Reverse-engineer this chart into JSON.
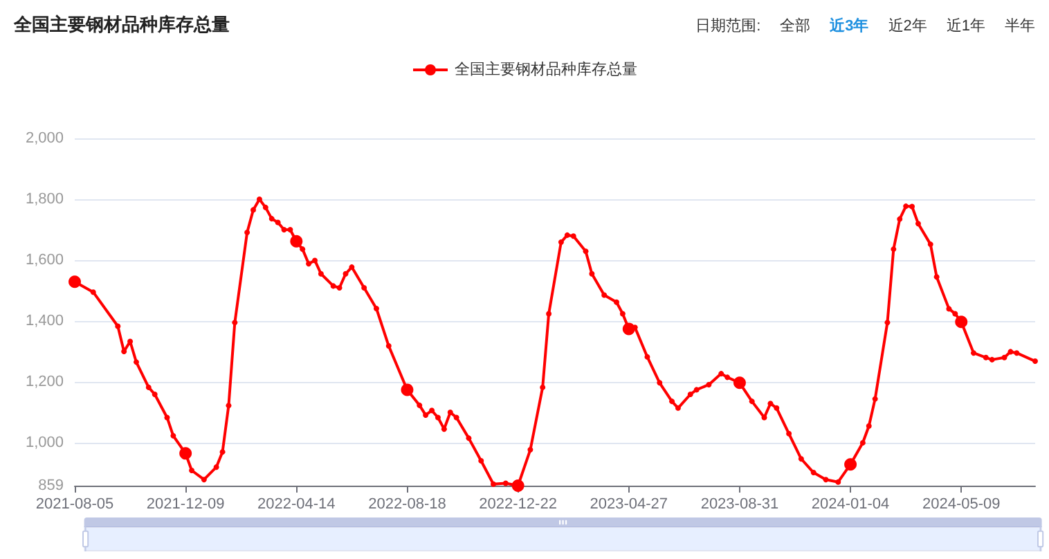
{
  "chart_data": {
    "type": "line",
    "title": "全国主要钢材品种库存总量",
    "annotations": [
      "日期范围:",
      "全部",
      "近3年",
      "近2年",
      "近1年",
      "半年"
    ],
    "x": [
      "2021-08-05",
      "2021-08-26",
      "2021-09-23",
      "2021-09-30",
      "2021-10-07",
      "2021-10-14",
      "2021-10-28",
      "2021-11-04",
      "2021-11-18",
      "2021-11-25",
      "2021-12-09",
      "2021-12-16",
      "2021-12-30",
      "2022-01-13",
      "2022-01-20",
      "2022-01-27",
      "2022-02-03",
      "2022-02-17",
      "2022-02-24",
      "2022-03-03",
      "2022-03-10",
      "2022-03-17",
      "2022-03-24",
      "2022-03-31",
      "2022-04-07",
      "2022-04-14",
      "2022-04-21",
      "2022-04-28",
      "2022-05-05",
      "2022-05-12",
      "2022-05-26",
      "2022-06-02",
      "2022-06-09",
      "2022-06-16",
      "2022-06-30",
      "2022-07-14",
      "2022-07-28",
      "2022-08-18",
      "2022-09-01",
      "2022-09-08",
      "2022-09-15",
      "2022-09-22",
      "2022-09-29",
      "2022-10-06",
      "2022-10-13",
      "2022-10-27",
      "2022-11-10",
      "2022-11-24",
      "2022-12-08",
      "2022-12-22",
      "2023-01-05",
      "2023-01-19",
      "2023-01-26",
      "2023-02-09",
      "2023-02-16",
      "2023-02-23",
      "2023-03-09",
      "2023-03-16",
      "2023-03-30",
      "2023-04-13",
      "2023-04-20",
      "2023-04-27",
      "2023-05-04",
      "2023-05-18",
      "2023-06-01",
      "2023-06-15",
      "2023-06-22",
      "2023-07-06",
      "2023-07-13",
      "2023-07-27",
      "2023-08-10",
      "2023-08-17",
      "2023-08-31",
      "2023-09-14",
      "2023-09-28",
      "2023-10-05",
      "2023-10-12",
      "2023-10-26",
      "2023-11-09",
      "2023-11-23",
      "2023-12-07",
      "2023-12-21",
      "2024-01-04",
      "2024-01-18",
      "2024-01-25",
      "2024-02-01",
      "2024-02-15",
      "2024-02-22",
      "2024-02-29",
      "2024-03-07",
      "2024-03-14",
      "2024-03-21",
      "2024-04-04",
      "2024-04-11",
      "2024-04-25",
      "2024-05-02",
      "2024-05-09",
      "2024-05-23",
      "2024-06-06",
      "2024-06-13",
      "2024-06-27",
      "2024-07-04",
      "2024-07-11",
      "2024-08-01"
    ],
    "series": [
      {
        "name": "全国主要钢材品种库存总量",
        "color": "#ff0000",
        "values": [
          1529,
          1495,
          1383,
          1300,
          1333,
          1265,
          1182,
          1159,
          1083,
          1023,
          965,
          909,
          879,
          920,
          970,
          1122,
          1395,
          1691,
          1765,
          1800,
          1773,
          1736,
          1724,
          1700,
          1700,
          1662,
          1636,
          1588,
          1599,
          1555,
          1515,
          1509,
          1555,
          1577,
          1509,
          1441,
          1318,
          1174,
          1123,
          1091,
          1106,
          1083,
          1045,
          1100,
          1083,
          1015,
          941,
          864,
          867,
          859,
          977,
          1182,
          1424,
          1659,
          1682,
          1679,
          1629,
          1555,
          1485,
          1462,
          1424,
          1374,
          1379,
          1282,
          1197,
          1136,
          1114,
          1159,
          1174,
          1191,
          1227,
          1215,
          1197,
          1136,
          1083,
          1129,
          1114,
          1030,
          947,
          902,
          879,
          871,
          929,
          1000,
          1055,
          1144,
          1395,
          1636,
          1735,
          1777,
          1776,
          1720,
          1652,
          1545,
          1440,
          1424,
          1397,
          1295,
          1280,
          1273,
          1280,
          1299,
          1295,
          1268
        ]
      }
    ],
    "xlim": [
      "2021-08-05",
      "2024-08-01"
    ],
    "xticks": [
      "2021-08-05",
      "2021-12-09",
      "2022-04-14",
      "2022-08-18",
      "2022-12-22",
      "2023-04-27",
      "2023-08-31",
      "2024-01-04",
      "2024-05-09"
    ],
    "ylim": [
      859,
      2000
    ],
    "yticks": [
      859,
      {
        "value": 1000,
        "label": "1,000"
      },
      {
        "value": 1200,
        "label": "1,200"
      },
      {
        "value": 1400,
        "label": "1,400"
      },
      {
        "value": 1600,
        "label": "1,600"
      },
      {
        "value": 1800,
        "label": "1,800"
      },
      {
        "value": 2000,
        "label": "2,000"
      }
    ],
    "grid": "y",
    "legend": "top",
    "marker": "circle",
    "line_style": "solid"
  }
}
